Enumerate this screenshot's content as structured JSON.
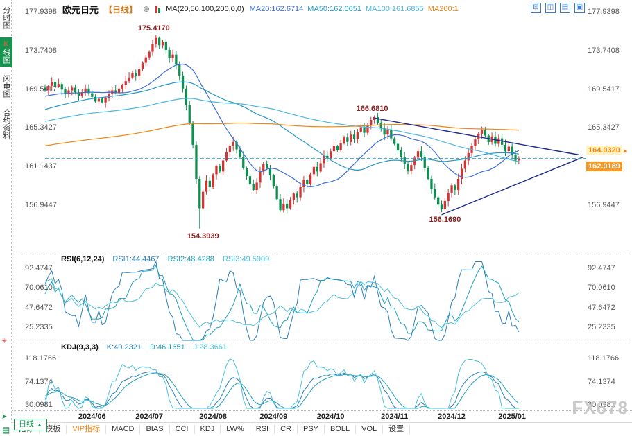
{
  "window": {
    "watermark": "FX678"
  },
  "sidebar": {
    "items": [
      {
        "name": "tab-time-chart",
        "label": "分时图",
        "active": false
      },
      {
        "name": "tab-kline-chart",
        "label": "K线图",
        "active": true
      },
      {
        "name": "tab-flash-chart",
        "label": "闪电图",
        "active": false
      },
      {
        "name": "tab-contract-info",
        "label": "合约资料",
        "active": false
      }
    ]
  },
  "header": {
    "symbol": "欧元日元",
    "period_tag": "【日线】",
    "expand_icon": "⊕",
    "ma_label": "MA(20,50,100,200,0,0)",
    "ma_items": [
      {
        "text": "MA20:162.6714",
        "color": "#3a6fd8"
      },
      {
        "text": "MA50:162.0651",
        "color": "#2398c8"
      },
      {
        "text": "MA100:161.6855",
        "color": "#4ab6e2"
      },
      {
        "text": "MA200:1",
        "color": "#f08511"
      }
    ],
    "layout_icons": [
      {
        "name": "layout-grid-icon",
        "glyph": "⊞"
      },
      {
        "name": "layout-columns-icon",
        "glyph": "◫"
      },
      {
        "name": "layout-rows-icon",
        "glyph": "▤"
      },
      {
        "name": "layout-single-icon",
        "glyph": "▣"
      }
    ]
  },
  "toolbar": {
    "period_label": "日线",
    "period_arrow": "▲",
    "tabs": [
      {
        "name": "tab-indicator",
        "label": "指标"
      },
      {
        "name": "tab-template",
        "label": "模板"
      },
      {
        "name": "tab-vip-indicator",
        "label": "VIP指标",
        "accent": true
      },
      {
        "name": "tab-macd",
        "label": "MACD"
      },
      {
        "name": "tab-bias",
        "label": "BIAS"
      },
      {
        "name": "tab-cci",
        "label": "CCI"
      },
      {
        "name": "tab-kdj",
        "label": "KDJ"
      },
      {
        "name": "tab-lw",
        "label": "LW%"
      },
      {
        "name": "tab-rsi",
        "label": "RSI"
      },
      {
        "name": "tab-cr",
        "label": "CR"
      },
      {
        "name": "tab-psy",
        "label": "PSY"
      },
      {
        "name": "tab-boll",
        "label": "BOLL"
      },
      {
        "name": "tab-vol",
        "label": "VOL"
      },
      {
        "name": "tab-settings",
        "label": "设置"
      }
    ]
  },
  "icons": {
    "asterisk": "✳",
    "corner": "➤",
    "latest": "▸"
  },
  "colors": {
    "up": "#d23535",
    "down": "#0c8f4f",
    "ma20": "#3a6fd8",
    "ma50": "#2398c8",
    "ma100": "#4ab6e2",
    "ma200": "#f08511",
    "trend": "#1b2a8c",
    "dash": "#2aa7c4",
    "annotation": "#8a1f1f",
    "axis": "#555",
    "last_bg": "#f59a23",
    "alert": "#f08511",
    "alert_bg": "#fdf3c4"
  },
  "chart_data": {
    "type": "candlestick",
    "title": "欧元日元 日线 (EUR/JPY daily)",
    "y_axis_labels": [
      "177.9398",
      "173.7408",
      "169.5417",
      "165.3427",
      "161.1437",
      "156.9447"
    ],
    "x_axis_labels": [
      {
        "label": "2024/06",
        "i": 14
      },
      {
        "label": "2024/07",
        "i": 31
      },
      {
        "label": "2024/08",
        "i": 50
      },
      {
        "label": "2024/09",
        "i": 68
      },
      {
        "label": "2024/10",
        "i": 85
      },
      {
        "label": "2024/11",
        "i": 104
      },
      {
        "label": "2024/12",
        "i": 121
      },
      {
        "label": "2025/01",
        "i": 139
      }
    ],
    "closes": [
      169.4,
      169.9,
      170.3,
      169.8,
      170.1,
      169.5,
      169.0,
      169.4,
      169.7,
      169.2,
      168.8,
      169.2,
      169.6,
      169.1,
      168.7,
      168.2,
      168.5,
      168.1,
      168.6,
      169.0,
      169.4,
      169.1,
      169.6,
      170.0,
      170.4,
      170.8,
      171.3,
      171.0,
      171.7,
      172.4,
      173.0,
      173.6,
      174.4,
      175.1,
      174.3,
      174.7,
      173.8,
      172.9,
      173.3,
      172.2,
      171.0,
      169.6,
      167.8,
      165.9,
      163.5,
      159.8,
      156.6,
      158.4,
      159.6,
      158.9,
      160.3,
      161.2,
      160.6,
      161.8,
      162.7,
      163.4,
      163.8,
      163.0,
      162.2,
      161.0,
      160.1,
      159.2,
      158.6,
      159.4,
      160.6,
      161.4,
      161.0,
      160.2,
      159.0,
      157.6,
      156.4,
      157.1,
      156.6,
      157.5,
      158.2,
      157.8,
      158.9,
      159.7,
      159.2,
      160.3,
      161.1,
      160.6,
      161.5,
      162.3,
      162.0,
      162.8,
      163.4,
      162.9,
      163.7,
      164.3,
      163.8,
      164.6,
      164.1,
      164.9,
      165.4,
      164.8,
      165.6,
      166.2,
      166.5,
      165.9,
      165.3,
      164.6,
      165.1,
      164.2,
      163.6,
      162.9,
      162.2,
      161.4,
      160.7,
      161.3,
      162.1,
      162.8,
      162.2,
      161.0,
      159.8,
      158.7,
      157.8,
      157.0,
      156.5,
      157.4,
      158.3,
      159.1,
      158.6,
      159.8,
      160.9,
      161.8,
      162.6,
      163.4,
      164.1,
      164.7,
      165.1,
      164.5,
      163.8,
      164.4,
      163.6,
      164.2,
      163.5,
      162.8,
      163.3,
      162.4,
      161.8,
      162.02
    ],
    "extremes": [
      {
        "i": 33,
        "high": 175.417
      },
      {
        "i": 46,
        "low": 154.3939
      },
      {
        "i": 98,
        "high": 166.681
      },
      {
        "i": 118,
        "low": 156.169
      }
    ],
    "annotations": [
      {
        "text": "175.4170",
        "i": 33,
        "price": 175.417,
        "placement": "above"
      },
      {
        "text": "166.6810",
        "i": 98,
        "price": 166.681,
        "placement": "above"
      },
      {
        "text": "154.3939",
        "i": 46,
        "price": 154.3939,
        "placement": "below"
      },
      {
        "text": "156.1690",
        "i": 118,
        "price": 156.169,
        "placement": "below"
      }
    ],
    "trendlines": [
      {
        "i1": 98,
        "p1": 166.4,
        "i2": 159,
        "p2": 162.4
      },
      {
        "i1": 118,
        "p1": 155.9,
        "i2": 160,
        "p2": 162.15
      }
    ],
    "last_price": "162.0189",
    "alert_price": "164.0320",
    "ma_windows": [
      20,
      50,
      100,
      200
    ],
    "ma_history": {
      "start": 158,
      "end": 168.5,
      "n": 200
    },
    "rsi": {
      "label": "RSI(6,12,24)",
      "windows": [
        6,
        12,
        24
      ],
      "values": [
        {
          "text": "RSI1:44.4467",
          "color": "#2a7fb8"
        },
        {
          "text": "RSI2:48.4288",
          "color": "#1fa0b8"
        },
        {
          "text": "RSI3:49.5909",
          "color": "#49c0d8"
        }
      ],
      "axis_labels": [
        "92.4747",
        "70.0610",
        "47.6472",
        "25.2335"
      ]
    },
    "kdj": {
      "label": "KDJ(9,3,3)",
      "params": [
        9,
        3,
        3
      ],
      "values": [
        {
          "text": "K:40.2321",
          "color": "#2a7fb8"
        },
        {
          "text": "D:46.1651",
          "color": "#1fa0b8"
        },
        {
          "text": "J:28.3661",
          "color": "#49c0d8"
        }
      ],
      "axis_labels": [
        "118.1766",
        "74.1374",
        "30.0981"
      ]
    }
  }
}
